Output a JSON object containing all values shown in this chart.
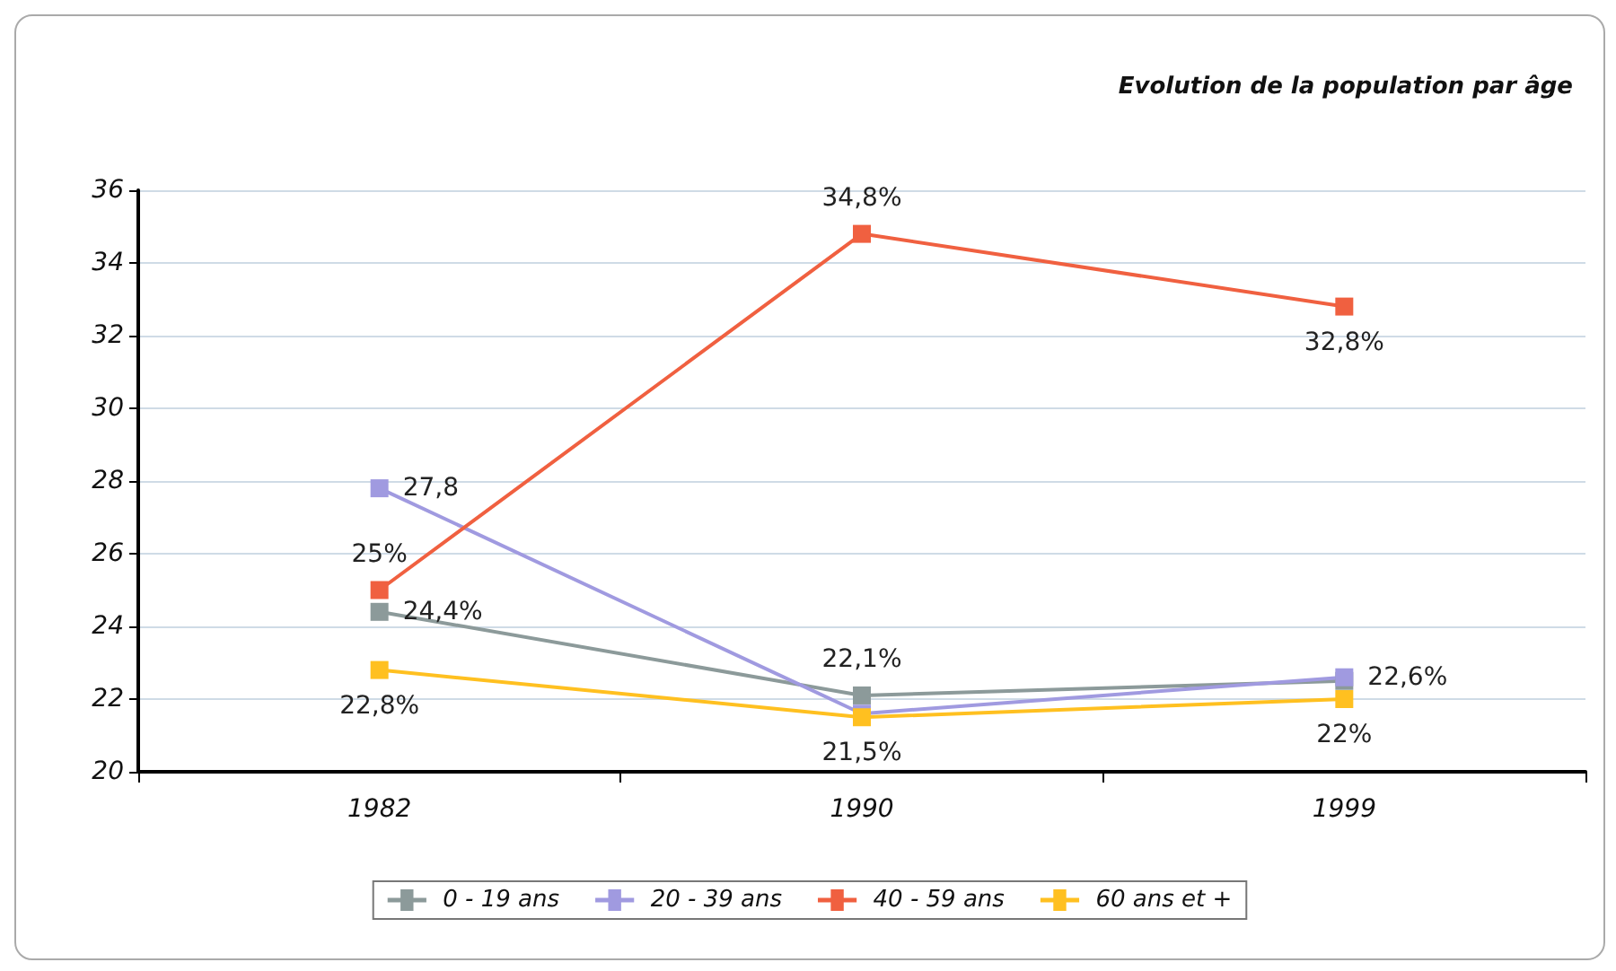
{
  "chart_data": {
    "type": "line",
    "title": "Evolution de la population par âge",
    "categories": [
      "1982",
      "1990",
      "1999"
    ],
    "series": [
      {
        "name": "0 - 19 ans",
        "color": "#8c9a9a",
        "values": [
          24.4,
          22.1,
          22.5
        ],
        "value_labels": [
          "24,4%",
          "22,1%",
          null
        ]
      },
      {
        "name": "20 - 39 ans",
        "color": "#a09ae0",
        "values": [
          27.8,
          21.6,
          22.6
        ],
        "value_labels": [
          "27,8",
          null,
          "22,6%"
        ]
      },
      {
        "name": "40 - 59 ans",
        "color": "#f06040",
        "values": [
          25,
          34.8,
          32.8
        ],
        "value_labels": [
          "25%",
          "34,8%",
          "32,8%"
        ]
      },
      {
        "name": "60 ans et +",
        "color": "#ffc020",
        "values": [
          22.8,
          21.5,
          22
        ],
        "value_labels": [
          "22,8%",
          "21,5%",
          "22%"
        ]
      }
    ],
    "ylim": [
      20,
      36
    ],
    "yticks": [
      20,
      22,
      24,
      26,
      28,
      30,
      32,
      34,
      36
    ],
    "grid": "y",
    "legend": "bottom",
    "marker": "square",
    "line_style": "solid"
  }
}
